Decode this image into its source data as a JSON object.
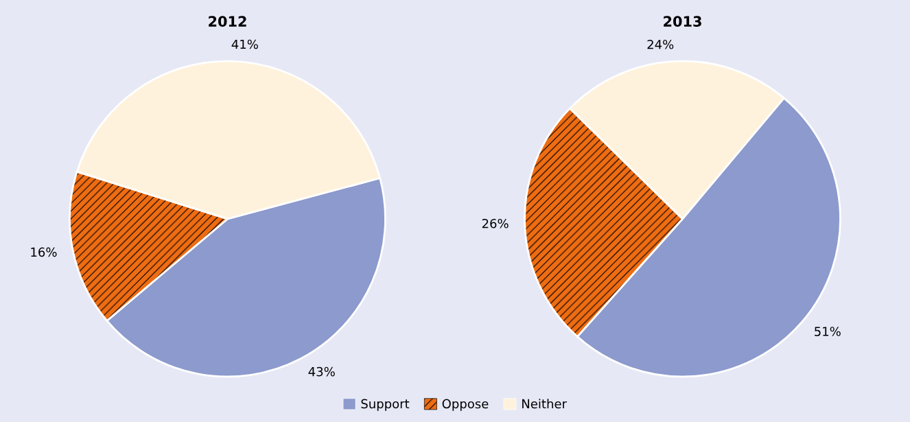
{
  "chart_data": [
    {
      "type": "pie",
      "title": "2012",
      "categories": [
        "Support",
        "Oppose",
        "Neither"
      ],
      "values": [
        43,
        16,
        41
      ],
      "value_labels": [
        "43%",
        "16%",
        "41%"
      ],
      "colors": [
        "#8c9acd",
        "#ee6c12",
        "#fff2dc"
      ],
      "legend": "bottom"
    },
    {
      "type": "pie",
      "title": "2013",
      "categories": [
        null,
        null,
        null
      ],
      "values": [
        51,
        26,
        24
      ],
      "value_labels": [
        "51%",
        "26%",
        "24%"
      ],
      "colors": [
        "#8c9acd",
        "#ee6c12",
        "#fff2dc"
      ]
    }
  ]
}
